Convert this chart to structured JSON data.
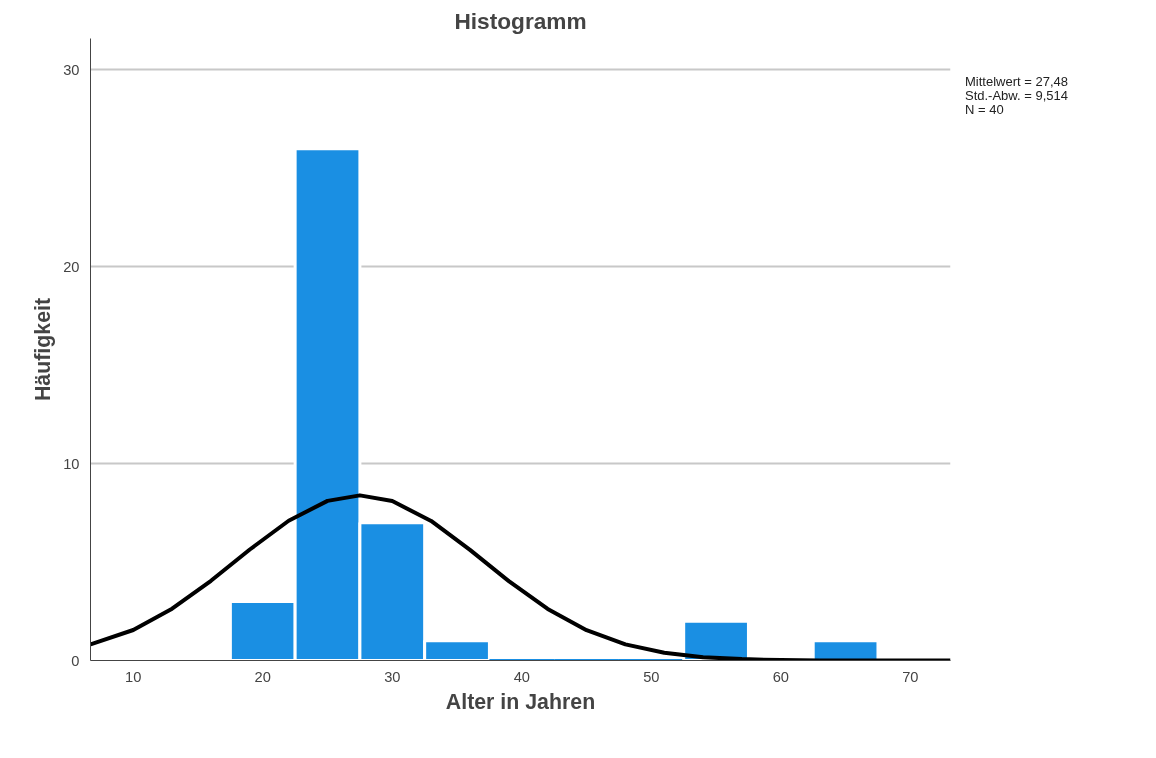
{
  "chart_data": {
    "type": "histogram",
    "title": "Histogramm",
    "xlabel": "Alter in Jahren",
    "ylabel": "Häufigkeit",
    "bins": [
      17.5,
      22.5,
      27.5,
      32.5,
      37.5,
      42.5,
      47.5,
      52.5,
      57.5,
      62.5,
      67.5
    ],
    "values": [
      3,
      26,
      7,
      1,
      0,
      0,
      0,
      2,
      0,
      1
    ],
    "color": "#1a8fe3",
    "series": [
      {
        "type": "line",
        "color": "#000000",
        "x": [
          6.7,
          10,
          13,
          16,
          19,
          22,
          25,
          27.5,
          30,
          33,
          36,
          39,
          42,
          45,
          48,
          51,
          54,
          57,
          60,
          63,
          66,
          69,
          73.1
        ],
        "values": [
          0.82,
          1.55,
          2.63,
          4.05,
          5.64,
          7.1,
          8.11,
          8.39,
          8.1,
          7.09,
          5.62,
          4.03,
          2.62,
          1.54,
          0.82,
          0.39,
          0.17,
          0.07,
          0.02,
          0,
          0,
          0,
          0
        ]
      }
    ],
    "xlim": [
      6.7,
      73.1
    ],
    "ylim": [
      0,
      31.6
    ],
    "xticks": [
      10,
      20,
      30,
      40,
      50,
      60,
      70
    ],
    "yticks": [
      0,
      10,
      20,
      30
    ],
    "grid": "y",
    "annotations": [
      "Mittelwert = 27,48",
      "Std.-Abw. = 9,514",
      "N = 40"
    ]
  }
}
